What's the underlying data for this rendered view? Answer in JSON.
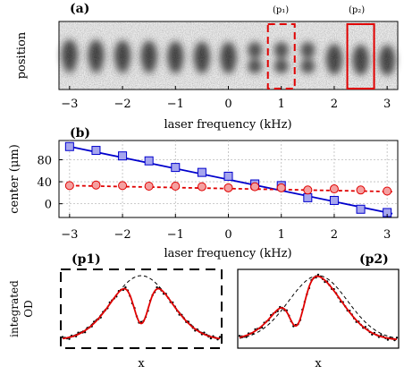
{
  "figure": {
    "panel_a_label": "(a)",
    "panel_b_label": "(b)",
    "panel_p1_label": "(p1)",
    "panel_p2_label": "(p2)",
    "marker_p1": "(p₁)",
    "marker_p2": "(p₂)",
    "position_label": "position",
    "xlabel_a": "laser frequency (kHz)",
    "xlabel_b": "laser frequency (kHz)",
    "ylabel_b": "center (μm)",
    "ylabel_bottom_line1": "integrated",
    "ylabel_bottom_line2": "OD",
    "xlabel_p1": "x",
    "xlabel_p2": "x",
    "colors": {
      "blue": "#0000cc",
      "blue_fill": "#a6a6ee",
      "red": "#e00000",
      "red_fill": "#f4a0a0"
    }
  },
  "chart_data": [
    {
      "type": "image-strip",
      "x_ticks": [
        -3,
        -2,
        -1,
        0,
        1,
        2,
        3
      ],
      "frames_x": [
        -3,
        -2.5,
        -2,
        -1.5,
        -1,
        -0.5,
        0,
        0.5,
        1,
        1.5,
        2,
        2.5,
        3
      ],
      "highlighted": [
        {
          "name": "p1",
          "x": 1,
          "style": "dashed"
        },
        {
          "name": "p2",
          "x": 2.5,
          "style": "solid"
        }
      ]
    },
    {
      "type": "scatter",
      "xlim": [
        -3.2,
        3.2
      ],
      "ylim": [
        -25,
        115
      ],
      "x_ticks": [
        -3,
        -2,
        -1,
        0,
        1,
        2,
        3
      ],
      "y_ticks": [
        0,
        40,
        80
      ],
      "grid": true,
      "series": [
        {
          "marker": "square",
          "x": [
            -3,
            -2.5,
            -2,
            -1.5,
            -1,
            -0.5,
            0,
            0.5,
            1,
            1.5,
            2,
            2.5,
            3
          ],
          "y": [
            104,
            97,
            87,
            78,
            66,
            57,
            50,
            36,
            33,
            11,
            6,
            -10,
            -16
          ],
          "fit": {
            "x": [
              -3,
              3.1
            ],
            "y": [
              104,
              -18
            ]
          }
        },
        {
          "marker": "circle",
          "x": [
            -3,
            -2.5,
            -2,
            -1.5,
            -1,
            -0.5,
            0,
            0.5,
            1,
            1.5,
            2,
            2.5,
            3
          ],
          "y": [
            33,
            34,
            33,
            32,
            32,
            31,
            29,
            31,
            29,
            25,
            27,
            25,
            23
          ],
          "fit": {
            "x": [
              -3,
              3.1
            ],
            "y": [
              33,
              22
            ]
          }
        }
      ]
    },
    {
      "type": "line",
      "name": "p1",
      "series": [
        {
          "kind": "data",
          "description_free": true
        },
        {
          "kind": "fit"
        },
        {
          "kind": "envelope"
        }
      ],
      "peaks": [
        -0.6,
        0.6
      ],
      "dip": 0
    },
    {
      "type": "line",
      "name": "p2",
      "peaks": [
        -0.7,
        0.45
      ],
      "dip": -0.45
    }
  ]
}
